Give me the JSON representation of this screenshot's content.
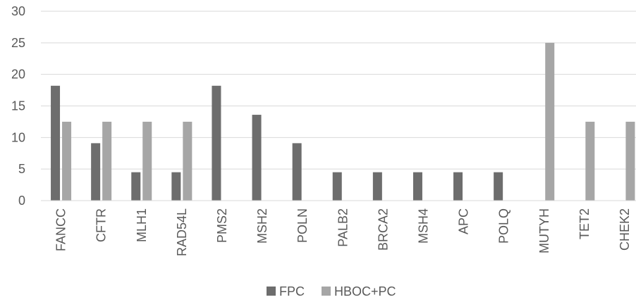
{
  "chart_data": {
    "type": "bar",
    "title": "",
    "xlabel": "",
    "ylabel": "",
    "ylim": [
      0,
      30
    ],
    "yticks": [
      0,
      5,
      10,
      15,
      20,
      25,
      30
    ],
    "grid": true,
    "legend_position": "bottom",
    "categories": [
      "FANCC",
      "CFTR",
      "MLH1",
      "RAD54L",
      "PMS2",
      "MSH2",
      "POLN",
      "PALB2",
      "BRCA2",
      "MSH4",
      "APC",
      "POLQ",
      "MUTYH",
      "TET2",
      "CHEK2"
    ],
    "series": [
      {
        "name": "FPC",
        "color": "#6d6d6d",
        "values": [
          18.2,
          9.1,
          4.5,
          4.5,
          18.2,
          13.6,
          9.1,
          4.5,
          4.5,
          4.5,
          4.5,
          4.5,
          0,
          0,
          0
        ]
      },
      {
        "name": "HBOC+PC",
        "color": "#a6a6a6",
        "values": [
          12.5,
          12.5,
          12.5,
          12.5,
          0,
          0,
          0,
          0,
          0,
          0,
          0,
          0,
          25,
          12.5,
          12.5
        ]
      }
    ]
  }
}
